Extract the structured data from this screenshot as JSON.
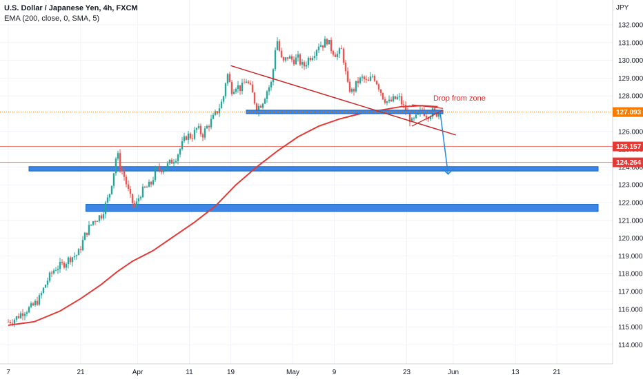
{
  "chart_data": {
    "type": "line",
    "title": "U.S. Dollar / Japanese Yen, 4h, FXCM",
    "indicator_label": "EMA (200, close, 0, SMA, 5)",
    "currency_label": "JPY",
    "ylim": [
      113.2,
      132.5
    ],
    "y_ticks": [
      "132.000",
      "131.000",
      "130.000",
      "129.000",
      "128.000",
      "127.000",
      "126.000",
      "125.000",
      "124.000",
      "123.000",
      "122.000",
      "121.000",
      "120.000",
      "119.000",
      "118.000",
      "117.000",
      "116.000",
      "115.000",
      "114.000"
    ],
    "x_ticks": [
      {
        "label": "7",
        "day": 0
      },
      {
        "label": "21",
        "day": 14
      },
      {
        "label": "Apr",
        "day": 25
      },
      {
        "label": "11",
        "day": 35
      },
      {
        "label": "19",
        "day": 43
      },
      {
        "label": "May",
        "day": 55
      },
      {
        "label": "9",
        "day": 63
      },
      {
        "label": "23",
        "day": 77
      },
      {
        "label": "Jun",
        "day": 86
      },
      {
        "label": "13",
        "day": 98
      },
      {
        "label": "21",
        "day": 106
      }
    ],
    "price_path": [
      [
        0,
        115.3
      ],
      [
        1.5,
        115.5
      ],
      [
        3,
        115.9
      ],
      [
        4.5,
        116.1
      ],
      [
        6,
        116.6
      ],
      [
        7.5,
        117.6
      ],
      [
        9,
        118.3
      ],
      [
        10.5,
        118.5
      ],
      [
        12,
        118.9
      ],
      [
        13.5,
        119.1
      ],
      [
        15,
        120.3
      ],
      [
        16.5,
        121.0
      ],
      [
        18,
        121.3
      ],
      [
        19.5,
        122.4
      ],
      [
        20.5,
        123.9
      ],
      [
        21,
        124.9
      ],
      [
        21.5,
        124.1
      ],
      [
        22.5,
        123.4
      ],
      [
        23.5,
        122.3
      ],
      [
        24.5,
        121.7
      ],
      [
        25.5,
        122.5
      ],
      [
        26.5,
        122.8
      ],
      [
        27.5,
        123.0
      ],
      [
        28.5,
        123.8
      ],
      [
        29.5,
        123.9
      ],
      [
        30.5,
        124.0
      ],
      [
        31.5,
        124.3
      ],
      [
        32.5,
        124.6
      ],
      [
        33.5,
        125.2
      ],
      [
        34.5,
        125.8
      ],
      [
        35.5,
        125.7
      ],
      [
        36.5,
        126.2
      ],
      [
        37.5,
        125.8
      ],
      [
        38.5,
        126.3
      ],
      [
        39.5,
        126.7
      ],
      [
        40.5,
        127.2
      ],
      [
        41.5,
        127.8
      ],
      [
        42,
        128.8
      ],
      [
        42.5,
        129.3
      ],
      [
        43,
        128.3
      ],
      [
        44,
        128.6
      ],
      [
        45,
        128.4
      ],
      [
        46,
        128.9
      ],
      [
        47,
        128.3
      ],
      [
        48,
        127.3
      ],
      [
        49,
        127.6
      ],
      [
        50,
        128.3
      ],
      [
        51,
        128.8
      ],
      [
        51.5,
        130.6
      ],
      [
        52,
        131.1
      ],
      [
        52.5,
        130.4
      ],
      [
        53,
        129.8
      ],
      [
        54,
        130.2
      ],
      [
        55,
        130.0
      ],
      [
        56,
        130.1
      ],
      [
        57,
        129.6
      ],
      [
        58,
        130.1
      ],
      [
        59,
        130.4
      ],
      [
        60,
        130.9
      ],
      [
        61,
        130.9
      ],
      [
        61.5,
        131.2
      ],
      [
        62.5,
        130.6
      ],
      [
        63.5,
        130.3
      ],
      [
        64.5,
        130.6
      ],
      [
        65,
        129.7
      ],
      [
        65.5,
        128.6
      ],
      [
        66.5,
        128.2
      ],
      [
        67.5,
        128.8
      ],
      [
        68.5,
        129.0
      ],
      [
        69.5,
        128.7
      ],
      [
        70.5,
        129.2
      ],
      [
        71.5,
        128.6
      ],
      [
        72.5,
        127.9
      ],
      [
        73.5,
        127.6
      ],
      [
        74.5,
        127.8
      ],
      [
        75.5,
        127.9
      ],
      [
        76.5,
        127.3
      ],
      [
        77.5,
        126.8
      ],
      [
        78,
        126.5
      ],
      [
        79,
        126.8
      ],
      [
        80,
        127.2
      ],
      [
        81,
        126.9
      ],
      [
        82,
        127.1
      ],
      [
        83,
        127.0
      ],
      [
        83.5,
        127.1
      ]
    ],
    "ema_path": [
      [
        0,
        115.1
      ],
      [
        5,
        115.3
      ],
      [
        10,
        115.9
      ],
      [
        14,
        116.6
      ],
      [
        18,
        117.4
      ],
      [
        21,
        118.1
      ],
      [
        24,
        118.7
      ],
      [
        28,
        119.3
      ],
      [
        32,
        120.1
      ],
      [
        36,
        120.9
      ],
      [
        40,
        121.8
      ],
      [
        44,
        123.0
      ],
      [
        48,
        124.0
      ],
      [
        52,
        124.9
      ],
      [
        56,
        125.7
      ],
      [
        60,
        126.3
      ],
      [
        64,
        126.7
      ],
      [
        68,
        127.0
      ],
      [
        72,
        127.2
      ],
      [
        76,
        127.4
      ],
      [
        80,
        127.45
      ],
      [
        83,
        127.4
      ]
    ],
    "drawings": {
      "trendline": {
        "x1": 43,
        "y1": 129.7,
        "x2": 86.5,
        "y2": 125.8
      },
      "triangle_top": {
        "x1": 78,
        "y1": 127.5,
        "x2": 84,
        "y2": 127.3
      },
      "triangle_bottom": {
        "x1": 78,
        "y1": 126.3,
        "x2": 84,
        "y2": 127.2
      },
      "resistance_zone": {
        "x1": 46,
        "x2": 84,
        "y": 127.1,
        "thickness": 0.2
      },
      "support_zone_1": {
        "x1": 4,
        "x2": 114,
        "y": 123.9,
        "thickness": 0.25
      },
      "support_zone_2": {
        "x1": 15,
        "x2": 114,
        "y": 121.7,
        "thickness": 0.4
      },
      "horizontal_lines": [
        125.157,
        124.264
      ],
      "projection_arrow": {
        "x1": 83.5,
        "y1": 127.0,
        "x2": 85,
        "y2": 123.6
      }
    },
    "annotation": "Drop from zone",
    "price_tags": [
      {
        "value": "127.093",
        "y": 127.093,
        "color": "#f57c00"
      },
      {
        "value": "125.157",
        "y": 125.157,
        "color": "#e53935"
      },
      {
        "value": "124.264",
        "y": 124.264,
        "color": "#e53935"
      }
    ],
    "colors": {
      "up": "#26a69a",
      "down": "#ef5350",
      "ema": "#e53935",
      "zone": "#3c84e5",
      "trend": "#c62828",
      "arrow": "#1e88e5",
      "hline": "#ef5350",
      "grid": "#f0f3fa"
    }
  }
}
